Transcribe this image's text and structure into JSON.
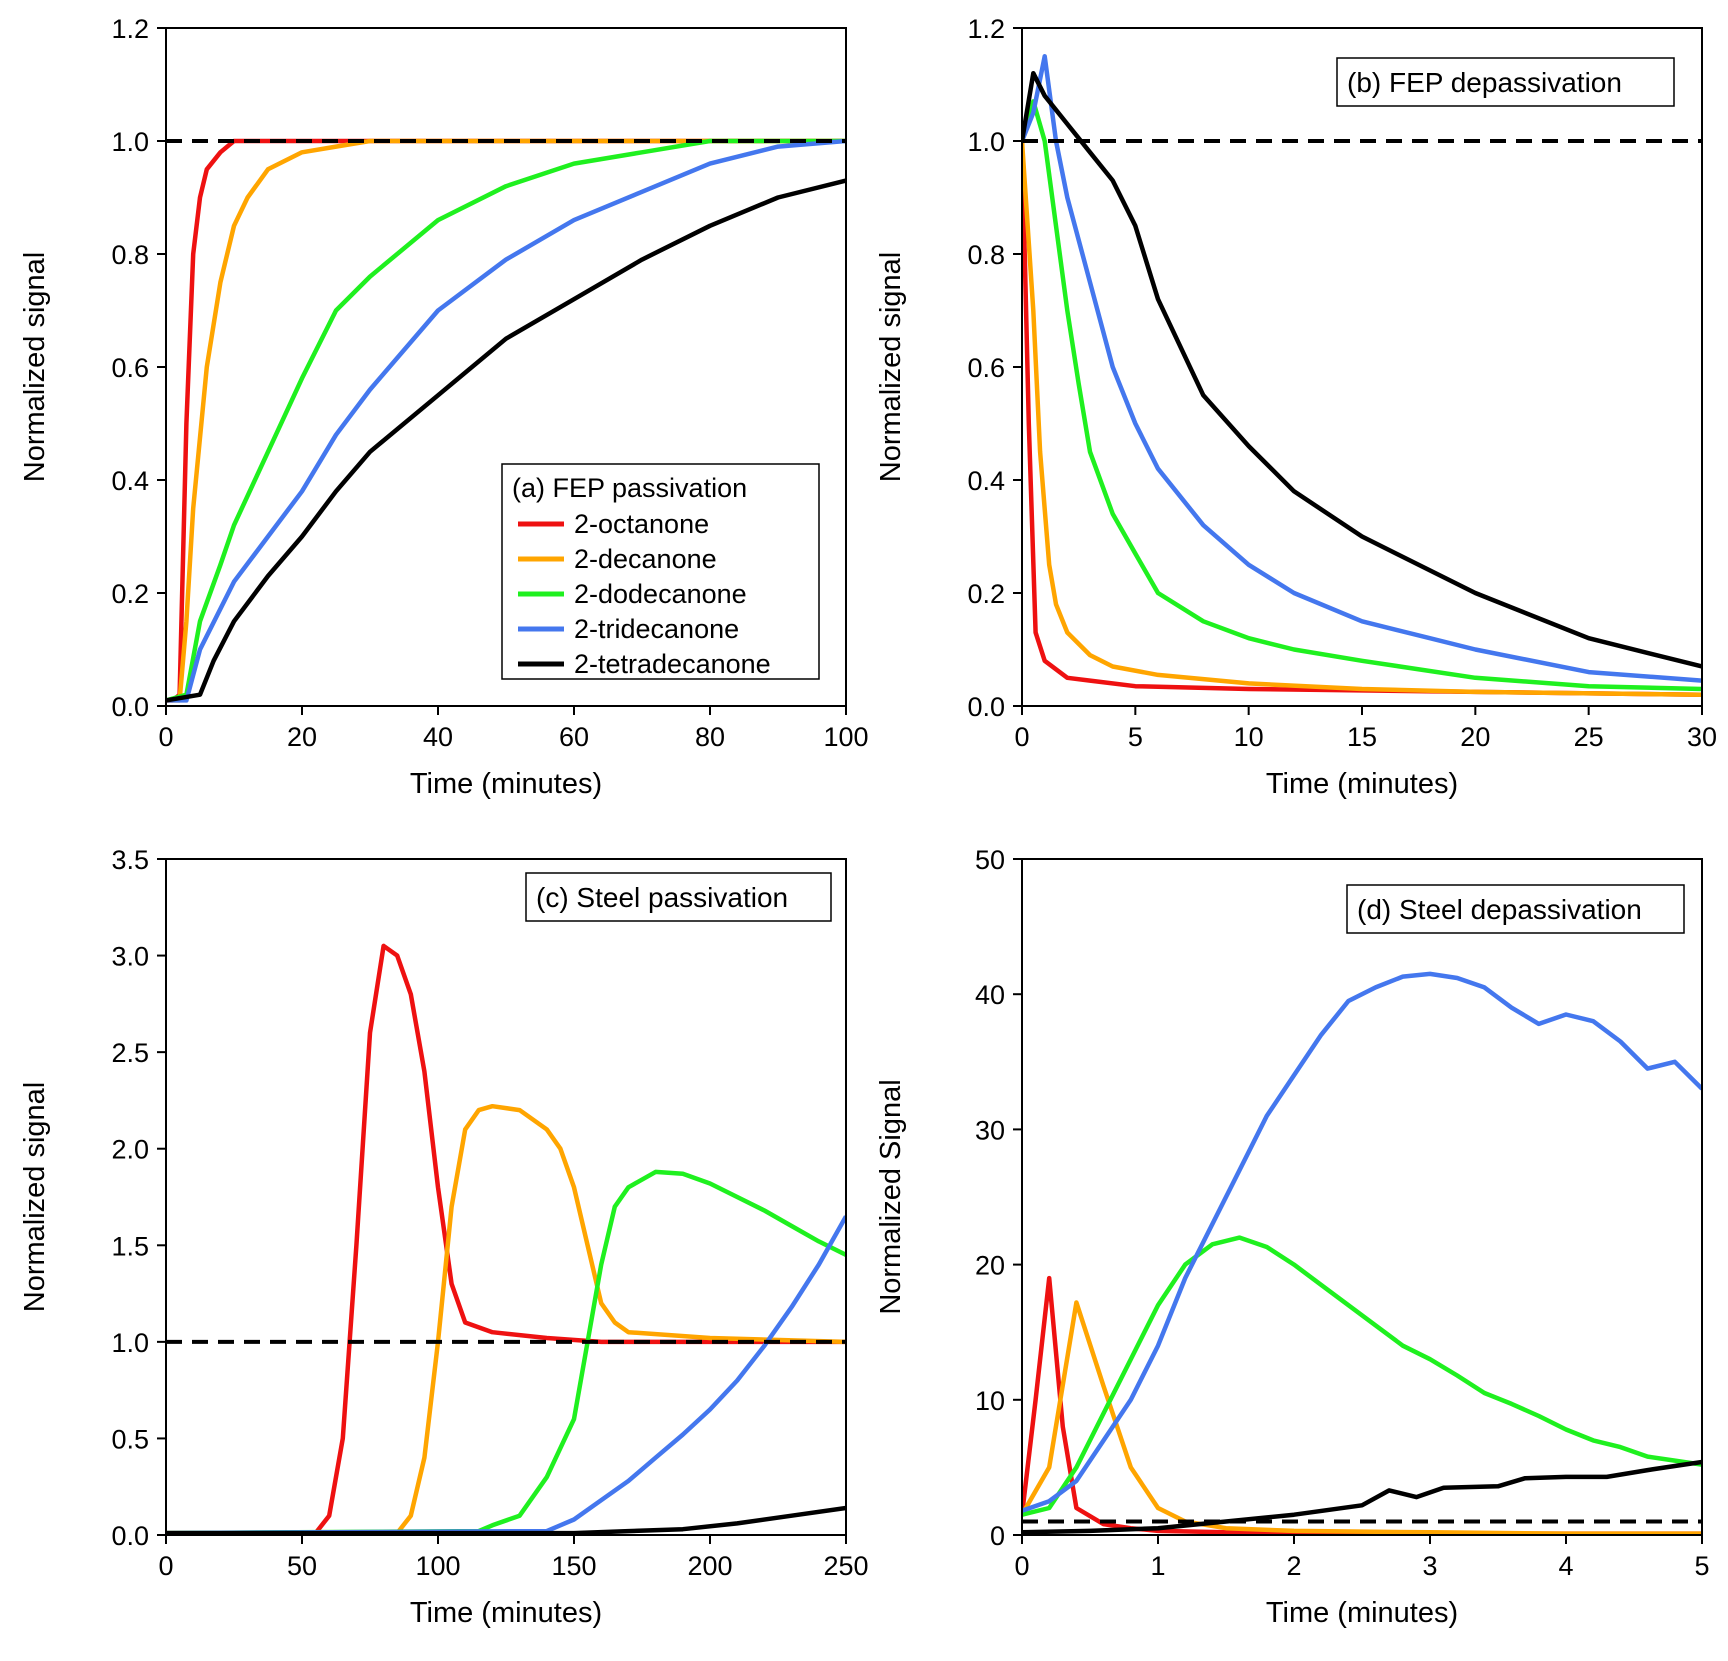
{
  "colors": {
    "2-octanone": "#ee1111",
    "2-decanone": "#ffa500",
    "2-dodecanone": "#1ff01f",
    "2-tridecanone": "#4477ee",
    "2-tetradecanone": "#000000"
  },
  "chart_data": [
    {
      "id": "a",
      "type": "line",
      "title": "(a) FEP passivation",
      "xlabel": "Time (minutes)",
      "ylabel": "Normalized signal",
      "xlim": [
        0,
        100
      ],
      "ylim": [
        0,
        1.2
      ],
      "xticks": [
        0,
        20,
        40,
        60,
        80,
        100
      ],
      "yticks": [
        0.0,
        0.2,
        0.4,
        0.6,
        0.8,
        1.0,
        1.2
      ],
      "ytick_labels": [
        "0.0",
        "0.2",
        "0.4",
        "0.6",
        "0.8",
        "1.0",
        "1.2"
      ],
      "reference_line": 1.0,
      "legend": [
        "2-octanone",
        "2-decanone",
        "2-dodecanone",
        "2-tridecanone",
        "2-tetradecanone"
      ],
      "series": [
        {
          "name": "2-octanone",
          "x": [
            0,
            1,
            2,
            3,
            4,
            5,
            6,
            8,
            10,
            15,
            20,
            40,
            60,
            80,
            100
          ],
          "y": [
            0.01,
            0.01,
            0.02,
            0.5,
            0.8,
            0.9,
            0.95,
            0.98,
            1.0,
            1.0,
            1.0,
            1.0,
            1.0,
            1.0,
            1.0
          ]
        },
        {
          "name": "2-decanone",
          "x": [
            0,
            2,
            3,
            4,
            6,
            8,
            10,
            12,
            15,
            20,
            25,
            30,
            40,
            60,
            80,
            100
          ],
          "y": [
            0.01,
            0.01,
            0.15,
            0.35,
            0.6,
            0.75,
            0.85,
            0.9,
            0.95,
            0.98,
            0.99,
            1.0,
            1.0,
            1.0,
            1.0,
            1.0
          ]
        },
        {
          "name": "2-dodecanone",
          "x": [
            0,
            3,
            5,
            8,
            10,
            15,
            20,
            25,
            30,
            40,
            50,
            60,
            70,
            80,
            90,
            100
          ],
          "y": [
            0.01,
            0.02,
            0.15,
            0.25,
            0.32,
            0.45,
            0.58,
            0.7,
            0.76,
            0.86,
            0.92,
            0.96,
            0.98,
            1.0,
            1.0,
            1.0
          ]
        },
        {
          "name": "2-tridecanone",
          "x": [
            0,
            3,
            5,
            10,
            15,
            20,
            25,
            30,
            40,
            50,
            60,
            70,
            80,
            90,
            100
          ],
          "y": [
            0.01,
            0.01,
            0.1,
            0.22,
            0.3,
            0.38,
            0.48,
            0.56,
            0.7,
            0.79,
            0.86,
            0.91,
            0.96,
            0.99,
            1.0
          ]
        },
        {
          "name": "2-tetradecanone",
          "x": [
            0,
            5,
            7,
            10,
            15,
            20,
            25,
            30,
            40,
            50,
            60,
            70,
            80,
            90,
            100
          ],
          "y": [
            0.01,
            0.02,
            0.08,
            0.15,
            0.23,
            0.3,
            0.38,
            0.45,
            0.55,
            0.65,
            0.72,
            0.79,
            0.85,
            0.9,
            0.93
          ]
        }
      ]
    },
    {
      "id": "b",
      "type": "line",
      "title": "(b) FEP depassivation",
      "xlabel": "Time (minutes)",
      "ylabel": "Normalized signal",
      "xlim": [
        0,
        30
      ],
      "ylim": [
        0,
        1.2
      ],
      "xticks": [
        0,
        5,
        10,
        15,
        20,
        25,
        30
      ],
      "yticks": [
        0.0,
        0.2,
        0.4,
        0.6,
        0.8,
        1.0,
        1.2
      ],
      "ytick_labels": [
        "0.0",
        "0.2",
        "0.4",
        "0.6",
        "0.8",
        "1.0",
        "1.2"
      ],
      "reference_line": 1.0,
      "series": [
        {
          "name": "2-octanone",
          "x": [
            0,
            0.3,
            0.6,
            1,
            2,
            3,
            5,
            10,
            20,
            30
          ],
          "y": [
            1.0,
            0.5,
            0.13,
            0.08,
            0.05,
            0.045,
            0.035,
            0.03,
            0.025,
            0.02
          ]
        },
        {
          "name": "2-decanone",
          "x": [
            0,
            0.5,
            0.8,
            1.2,
            1.5,
            2,
            3,
            4,
            6,
            10,
            15,
            20,
            30
          ],
          "y": [
            1.0,
            0.7,
            0.45,
            0.25,
            0.18,
            0.13,
            0.09,
            0.07,
            0.055,
            0.04,
            0.03,
            0.025,
            0.02
          ]
        },
        {
          "name": "2-dodecanone",
          "x": [
            0,
            0.5,
            1,
            1.5,
            2,
            2.5,
            3,
            4,
            5,
            6,
            8,
            10,
            12,
            15,
            20,
            25,
            30
          ],
          "y": [
            1.0,
            1.07,
            1.0,
            0.85,
            0.7,
            0.57,
            0.45,
            0.34,
            0.27,
            0.2,
            0.15,
            0.12,
            0.1,
            0.08,
            0.05,
            0.035,
            0.03
          ]
        },
        {
          "name": "2-tridecanone",
          "x": [
            0,
            0.5,
            1,
            1.5,
            2,
            3,
            4,
            5,
            6,
            8,
            10,
            12,
            15,
            20,
            25,
            30
          ],
          "y": [
            1.0,
            1.05,
            1.15,
            1.0,
            0.9,
            0.75,
            0.6,
            0.5,
            0.42,
            0.32,
            0.25,
            0.2,
            0.15,
            0.1,
            0.06,
            0.045
          ]
        },
        {
          "name": "2-tetradecanone",
          "x": [
            0,
            0.5,
            1,
            2,
            3,
            4,
            5,
            6,
            8,
            10,
            12,
            15,
            20,
            25,
            30
          ],
          "y": [
            1.0,
            1.12,
            1.08,
            1.03,
            0.98,
            0.93,
            0.85,
            0.72,
            0.55,
            0.46,
            0.38,
            0.3,
            0.2,
            0.12,
            0.07
          ]
        }
      ]
    },
    {
      "id": "c",
      "type": "line",
      "title": "(c) Steel passivation",
      "xlabel": "Time (minutes)",
      "ylabel": "Normalized signal",
      "xlim": [
        0,
        250
      ],
      "ylim": [
        0,
        3.5
      ],
      "xticks": [
        0,
        50,
        100,
        150,
        200,
        250
      ],
      "yticks": [
        0.0,
        0.5,
        1.0,
        1.5,
        2.0,
        2.5,
        3.0,
        3.5
      ],
      "ytick_labels": [
        "0.0",
        "0.5",
        "1.0",
        "1.5",
        "2.0",
        "2.5",
        "3.0",
        "3.5"
      ],
      "reference_line": 1.0,
      "series": [
        {
          "name": "2-octanone",
          "x": [
            0,
            55,
            60,
            65,
            70,
            75,
            80,
            85,
            90,
            95,
            100,
            105,
            110,
            120,
            140,
            160,
            200,
            250
          ],
          "y": [
            0.01,
            0.01,
            0.1,
            0.5,
            1.5,
            2.6,
            3.05,
            3.0,
            2.8,
            2.4,
            1.8,
            1.3,
            1.1,
            1.05,
            1.02,
            1.0,
            1.0,
            1.0
          ]
        },
        {
          "name": "2-decanone",
          "x": [
            0,
            85,
            90,
            95,
            100,
            105,
            110,
            115,
            120,
            130,
            140,
            145,
            150,
            155,
            160,
            165,
            170,
            200,
            250
          ],
          "y": [
            0.01,
            0.01,
            0.1,
            0.4,
            1.0,
            1.7,
            2.1,
            2.2,
            2.22,
            2.2,
            2.1,
            2.0,
            1.8,
            1.5,
            1.2,
            1.1,
            1.05,
            1.02,
            1.0
          ]
        },
        {
          "name": "2-dodecanone",
          "x": [
            0,
            115,
            120,
            130,
            140,
            150,
            155,
            160,
            165,
            170,
            180,
            190,
            200,
            210,
            220,
            230,
            240,
            250
          ],
          "y": [
            0.01,
            0.02,
            0.05,
            0.1,
            0.3,
            0.6,
            1.0,
            1.4,
            1.7,
            1.8,
            1.88,
            1.87,
            1.82,
            1.75,
            1.68,
            1.6,
            1.52,
            1.45
          ]
        },
        {
          "name": "2-tridecanone",
          "x": [
            0,
            140,
            150,
            160,
            170,
            180,
            190,
            200,
            210,
            220,
            230,
            240,
            250
          ],
          "y": [
            0.01,
            0.02,
            0.08,
            0.18,
            0.28,
            0.4,
            0.52,
            0.65,
            0.8,
            0.98,
            1.18,
            1.4,
            1.65
          ]
        },
        {
          "name": "2-tetradecanone",
          "x": [
            0,
            150,
            170,
            190,
            210,
            230,
            250
          ],
          "y": [
            0.01,
            0.01,
            0.02,
            0.03,
            0.06,
            0.1,
            0.14
          ]
        }
      ]
    },
    {
      "id": "d",
      "type": "line",
      "title": "(d) Steel depassivation",
      "xlabel": "Time (minutes)",
      "ylabel": "Normalized Signal",
      "xlim": [
        0,
        5
      ],
      "ylim": [
        0,
        50
      ],
      "xticks": [
        0,
        1,
        2,
        3,
        4,
        5
      ],
      "yticks": [
        0,
        10,
        20,
        30,
        40,
        50
      ],
      "ytick_labels": [
        "0",
        "10",
        "20",
        "30",
        "40",
        "50"
      ],
      "reference_line": 1.0,
      "series": [
        {
          "name": "2-octanone",
          "x": [
            0,
            0.1,
            0.2,
            0.3,
            0.4,
            0.6,
            0.8,
            1.0,
            1.5,
            2,
            3,
            4,
            5
          ],
          "y": [
            1.5,
            10,
            19,
            8,
            2,
            0.8,
            0.5,
            0.3,
            0.2,
            0.1,
            0.1,
            0.1,
            0.1
          ]
        },
        {
          "name": "2-decanone",
          "x": [
            0,
            0.2,
            0.4,
            0.6,
            0.8,
            1.0,
            1.2,
            1.5,
            2,
            3,
            4,
            5
          ],
          "y": [
            1.5,
            5,
            17.2,
            11,
            5,
            2,
            1,
            0.5,
            0.3,
            0.2,
            0.1,
            0.1
          ]
        },
        {
          "name": "2-dodecanone",
          "x": [
            0,
            0.2,
            0.4,
            0.6,
            0.8,
            1.0,
            1.2,
            1.4,
            1.6,
            1.8,
            2.0,
            2.2,
            2.4,
            2.6,
            2.8,
            3.0,
            3.2,
            3.4,
            3.6,
            3.8,
            4.0,
            4.2,
            4.4,
            4.6,
            4.8,
            5.0
          ],
          "y": [
            1.5,
            2,
            5,
            9,
            13,
            17,
            20,
            21.5,
            22,
            21.3,
            20,
            18.5,
            17,
            15.5,
            14,
            13,
            11.8,
            10.5,
            9.7,
            8.8,
            7.8,
            7,
            6.5,
            5.8,
            5.5,
            5.2
          ]
        },
        {
          "name": "2-tridecanone",
          "x": [
            0,
            0.2,
            0.4,
            0.6,
            0.8,
            1.0,
            1.2,
            1.4,
            1.6,
            1.8,
            2.0,
            2.2,
            2.4,
            2.6,
            2.8,
            3.0,
            3.2,
            3.4,
            3.6,
            3.8,
            4.0,
            4.2,
            4.4,
            4.6,
            4.8,
            5.0
          ],
          "y": [
            1.8,
            2.5,
            4,
            7,
            10,
            14,
            19,
            23,
            27,
            31,
            34,
            37,
            39.5,
            40.5,
            41.3,
            41.5,
            41.2,
            40.5,
            39,
            37.8,
            38.5,
            38,
            36.5,
            34.5,
            35,
            33
          ]
        },
        {
          "name": "2-tetradecanone",
          "x": [
            0,
            0.5,
            1.0,
            1.5,
            2.0,
            2.5,
            2.7,
            2.9,
            3.1,
            3.5,
            3.7,
            4.0,
            4.3,
            4.6,
            4.8,
            5.0
          ],
          "y": [
            0.2,
            0.3,
            0.5,
            1.0,
            1.5,
            2.2,
            3.3,
            2.8,
            3.5,
            3.6,
            4.2,
            4.3,
            4.3,
            4.8,
            5.1,
            5.4
          ]
        }
      ]
    }
  ]
}
